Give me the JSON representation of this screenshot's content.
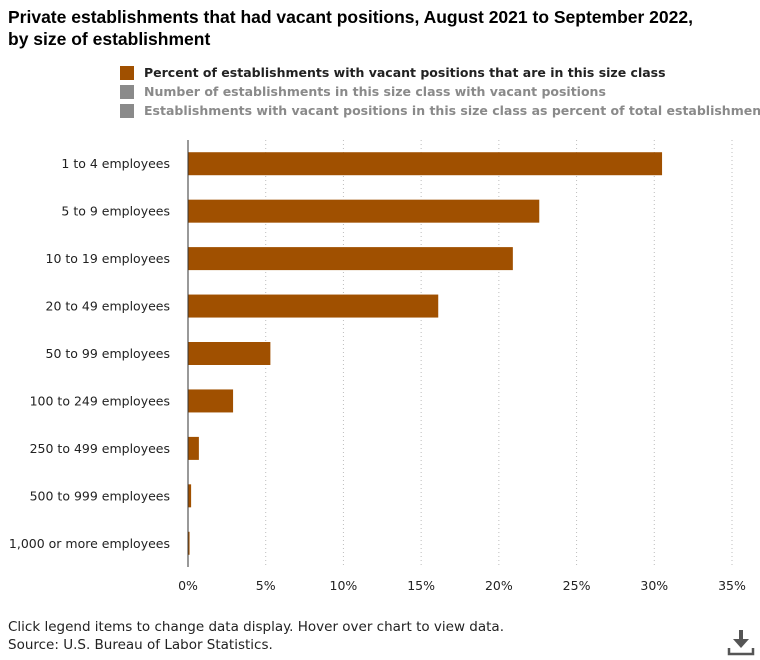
{
  "title_line1": "Private establishments that had vacant positions, August 2021 to September 2022,",
  "title_line2": "by size of establishment",
  "legend": [
    {
      "label": "Percent of establishments with vacant positions that are in this size class",
      "color": "#a05000",
      "active": true
    },
    {
      "label": "Number of establishments in this size class with vacant positions",
      "color": "#8a8a8a",
      "active": false
    },
    {
      "label": "Establishments with vacant positions in this size class as percent of total establishments",
      "color": "#8a8a8a",
      "active": false
    }
  ],
  "note": "Click legend items to change data display. Hover over chart to view data.",
  "source": "Source: U.S. Bureau of Labor Statistics.",
  "download_icon": "download-icon",
  "chart_data": {
    "type": "bar",
    "orientation": "horizontal",
    "categories": [
      "1 to 4 employees",
      "5 to 9 employees",
      "10 to 19 employees",
      "20 to 49 employees",
      "50 to 99 employees",
      "100 to 249 employees",
      "250 to 499 employees",
      "500 to 999 employees",
      "1,000 or more employees"
    ],
    "series": [
      {
        "name": "Percent of establishments with vacant positions that are in this size class",
        "color": "#a05000",
        "values": [
          30.5,
          22.6,
          20.9,
          16.1,
          5.3,
          2.9,
          0.7,
          0.2,
          0.1
        ]
      }
    ],
    "xlim": [
      0,
      35
    ],
    "xticks": [
      "0%",
      "5%",
      "10%",
      "15%",
      "20%",
      "25%",
      "30%",
      "35%"
    ],
    "grid": true,
    "legend_position": "top"
  }
}
